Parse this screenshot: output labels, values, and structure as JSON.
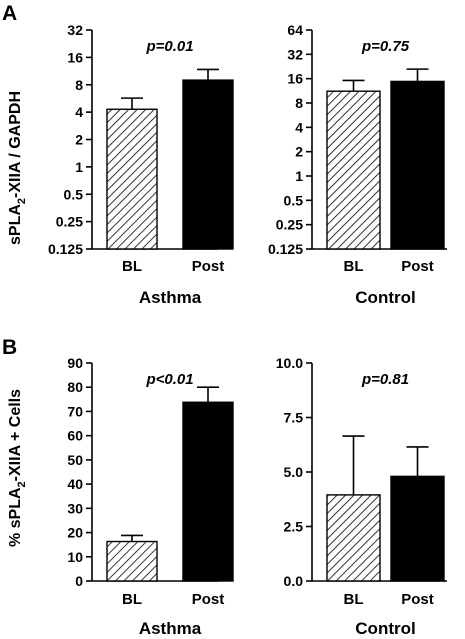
{
  "figure": {
    "panel_letters": [
      "A",
      "B"
    ],
    "ylabel_A_parts": [
      "sPLA",
      "2",
      "-XIIA / GAPDH"
    ],
    "ylabel_B_parts": [
      "% sPLA",
      "2",
      "-XIIA + Cells"
    ]
  },
  "colors": {
    "post_bar": "#000000",
    "bl_hatch": "#000000",
    "background": "#ffffff"
  },
  "chart_data": [
    {
      "type": "bar",
      "panel": "A",
      "group": "Asthma",
      "annotation": "p=0.01",
      "categories": [
        "BL",
        "Post"
      ],
      "values": [
        4.3,
        9.0
      ],
      "errors_upper": [
        5.7,
        11.8
      ],
      "bar_styles": [
        "hatched",
        "solid"
      ],
      "yscale": "log2",
      "ylim": [
        0.125,
        32
      ],
      "yticks": [
        0.125,
        0.25,
        0.5,
        1,
        2,
        4,
        8,
        16,
        32
      ],
      "ytick_labels": [
        "0.125",
        "0.25",
        "0.5",
        "1",
        "2",
        "4",
        "8",
        "16",
        "32"
      ],
      "grid": false
    },
    {
      "type": "bar",
      "panel": "A",
      "group": "Control",
      "annotation": "p=0.75",
      "categories": [
        "BL",
        "Post"
      ],
      "values": [
        11.2,
        14.8
      ],
      "errors_upper": [
        15.2,
        21.0
      ],
      "bar_styles": [
        "hatched",
        "solid"
      ],
      "yscale": "log2",
      "ylim": [
        0.125,
        64
      ],
      "yticks": [
        0.125,
        0.25,
        0.5,
        1,
        2,
        4,
        8,
        16,
        32,
        64
      ],
      "ytick_labels": [
        "0.125",
        "0.25",
        "0.5",
        "1",
        "2",
        "4",
        "8",
        "16",
        "32",
        "64"
      ],
      "grid": false
    },
    {
      "type": "bar",
      "panel": "B",
      "group": "Asthma",
      "annotation": "p<0.01",
      "categories": [
        "BL",
        "Post"
      ],
      "values": [
        16.3,
        73.8
      ],
      "errors_upper": [
        18.8,
        80.0
      ],
      "bar_styles": [
        "hatched",
        "solid"
      ],
      "yscale": "linear",
      "ylim": [
        0,
        90
      ],
      "yticks": [
        0,
        10,
        20,
        30,
        40,
        50,
        60,
        70,
        80,
        90
      ],
      "ytick_labels": [
        "0",
        "10",
        "20",
        "30",
        "40",
        "50",
        "60",
        "70",
        "80",
        "90"
      ],
      "grid": false
    },
    {
      "type": "bar",
      "panel": "B",
      "group": "Control",
      "annotation": "p=0.81",
      "categories": [
        "BL",
        "Post"
      ],
      "values": [
        3.95,
        4.8
      ],
      "errors_upper": [
        6.65,
        6.15
      ],
      "bar_styles": [
        "hatched",
        "solid"
      ],
      "yscale": "linear",
      "ylim": [
        0,
        10
      ],
      "yticks": [
        0,
        2.5,
        5,
        7.5,
        10
      ],
      "ytick_labels": [
        "0.0",
        "2.5",
        "5.0",
        "7.5",
        "10.0"
      ],
      "grid": false
    }
  ]
}
